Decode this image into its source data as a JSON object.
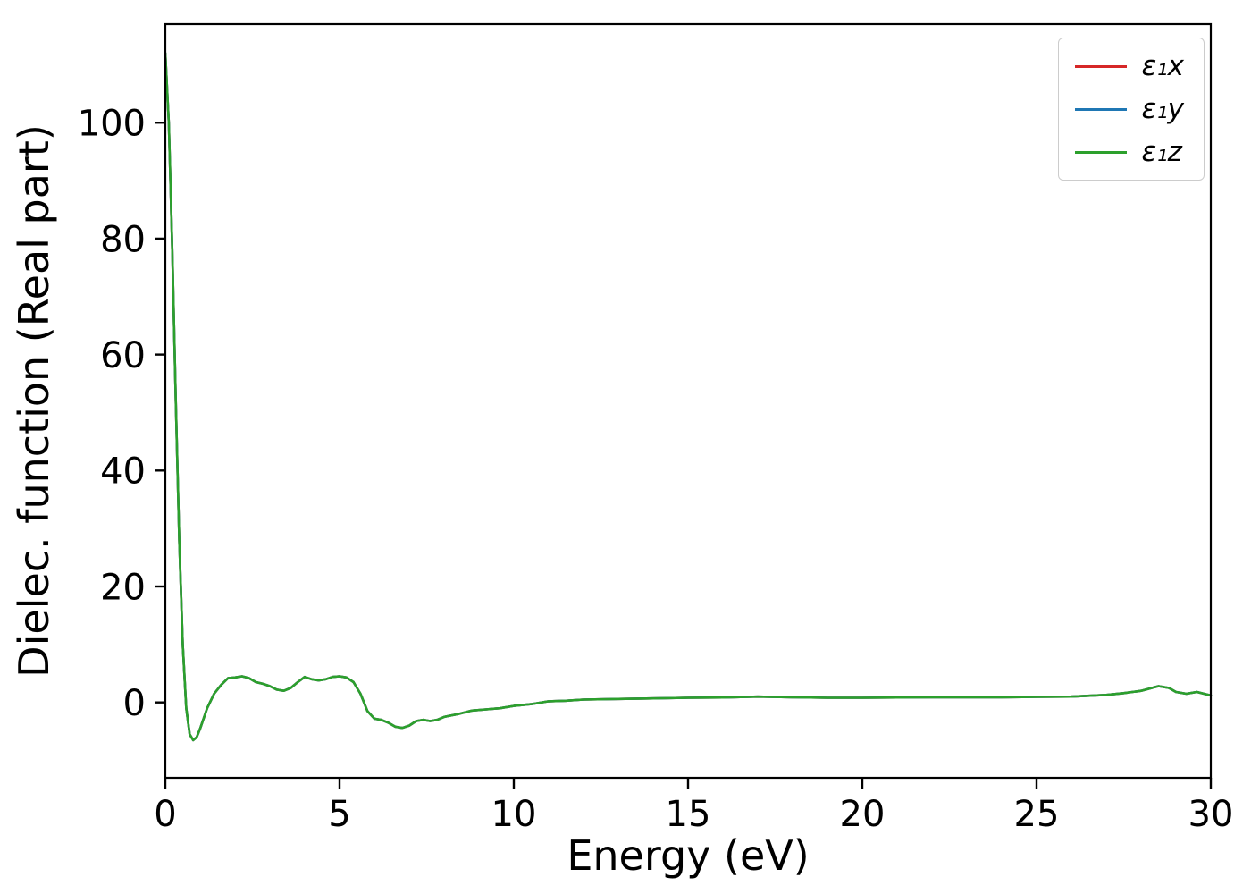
{
  "figure": {
    "background": "#ffffff"
  },
  "chart_data": {
    "type": "line",
    "title": "",
    "xlabel": "Energy (eV)",
    "ylabel": "Dielec. function (Real part)",
    "xlim": [
      0,
      30
    ],
    "ylim": [
      -13,
      117
    ],
    "xticks": [
      0,
      5,
      10,
      15,
      20,
      25,
      30
    ],
    "yticks": [
      0,
      20,
      40,
      60,
      80,
      100
    ],
    "grid": false,
    "legend_position": "upper right",
    "note": "All three series overlap almost exactly; the green series is drawn last and hides the red and blue curves.",
    "x": [
      0.0,
      0.1,
      0.2,
      0.3,
      0.4,
      0.5,
      0.6,
      0.7,
      0.8,
      0.9,
      1.0,
      1.2,
      1.4,
      1.6,
      1.8,
      2.0,
      2.2,
      2.4,
      2.6,
      2.8,
      3.0,
      3.2,
      3.4,
      3.6,
      3.8,
      4.0,
      4.2,
      4.4,
      4.6,
      4.8,
      5.0,
      5.2,
      5.4,
      5.6,
      5.8,
      6.0,
      6.2,
      6.4,
      6.6,
      6.8,
      7.0,
      7.2,
      7.4,
      7.6,
      7.8,
      8.0,
      8.4,
      8.8,
      9.2,
      9.6,
      10.0,
      10.5,
      11.0,
      11.5,
      12.0,
      13.0,
      14.0,
      15.0,
      16.0,
      17.0,
      18.0,
      19.0,
      20.0,
      21.0,
      22.0,
      23.0,
      24.0,
      25.0,
      26.0,
      27.0,
      27.5,
      28.0,
      28.5,
      28.8,
      29.0,
      29.3,
      29.6,
      30.0
    ],
    "series": [
      {
        "name": "ε₁x",
        "color": "#d62728",
        "values": [
          112,
          100,
          78,
          52,
          28,
          10,
          -1,
          -5.5,
          -6.5,
          -6,
          -4.5,
          -1,
          1.5,
          3,
          4.2,
          4.3,
          4.5,
          4.2,
          3.5,
          3.2,
          2.8,
          2.2,
          2.0,
          2.5,
          3.5,
          4.4,
          4.0,
          3.8,
          4.0,
          4.4,
          4.5,
          4.3,
          3.5,
          1.5,
          -1.5,
          -2.8,
          -3.0,
          -3.5,
          -4.2,
          -4.4,
          -4.0,
          -3.2,
          -3.0,
          -3.2,
          -3.0,
          -2.5,
          -2.0,
          -1.4,
          -1.2,
          -1.0,
          -0.6,
          -0.3,
          0.2,
          0.3,
          0.5,
          0.6,
          0.7,
          0.8,
          0.85,
          1.0,
          0.9,
          0.8,
          0.8,
          0.85,
          0.9,
          0.9,
          0.9,
          0.95,
          1.0,
          1.3,
          1.6,
          2.0,
          2.8,
          2.5,
          1.8,
          1.5,
          1.8,
          1.2
        ]
      },
      {
        "name": "ε₁y",
        "color": "#1f77b4",
        "values": [
          112,
          100,
          78,
          52,
          28,
          10,
          -1,
          -5.5,
          -6.5,
          -6,
          -4.5,
          -1,
          1.5,
          3,
          4.2,
          4.3,
          4.5,
          4.2,
          3.5,
          3.2,
          2.8,
          2.2,
          2.0,
          2.5,
          3.5,
          4.4,
          4.0,
          3.8,
          4.0,
          4.4,
          4.5,
          4.3,
          3.5,
          1.5,
          -1.5,
          -2.8,
          -3.0,
          -3.5,
          -4.2,
          -4.4,
          -4.0,
          -3.2,
          -3.0,
          -3.2,
          -3.0,
          -2.5,
          -2.0,
          -1.4,
          -1.2,
          -1.0,
          -0.6,
          -0.3,
          0.2,
          0.3,
          0.5,
          0.6,
          0.7,
          0.8,
          0.85,
          1.0,
          0.9,
          0.8,
          0.8,
          0.85,
          0.9,
          0.9,
          0.9,
          0.95,
          1.0,
          1.3,
          1.6,
          2.0,
          2.8,
          2.5,
          1.8,
          1.5,
          1.8,
          1.2
        ]
      },
      {
        "name": "ε₁z",
        "color": "#2ca02c",
        "values": [
          112,
          100,
          78,
          52,
          28,
          10,
          -1,
          -5.5,
          -6.5,
          -6,
          -4.5,
          -1,
          1.5,
          3,
          4.2,
          4.3,
          4.5,
          4.2,
          3.5,
          3.2,
          2.8,
          2.2,
          2.0,
          2.5,
          3.5,
          4.4,
          4.0,
          3.8,
          4.0,
          4.4,
          4.5,
          4.3,
          3.5,
          1.5,
          -1.5,
          -2.8,
          -3.0,
          -3.5,
          -4.2,
          -4.4,
          -4.0,
          -3.2,
          -3.0,
          -3.2,
          -3.0,
          -2.5,
          -2.0,
          -1.4,
          -1.2,
          -1.0,
          -0.6,
          -0.3,
          0.2,
          0.3,
          0.5,
          0.6,
          0.7,
          0.8,
          0.85,
          1.0,
          0.9,
          0.8,
          0.8,
          0.85,
          0.9,
          0.9,
          0.9,
          0.95,
          1.0,
          1.3,
          1.6,
          2.0,
          2.8,
          2.5,
          1.8,
          1.5,
          1.8,
          1.2
        ]
      }
    ]
  }
}
